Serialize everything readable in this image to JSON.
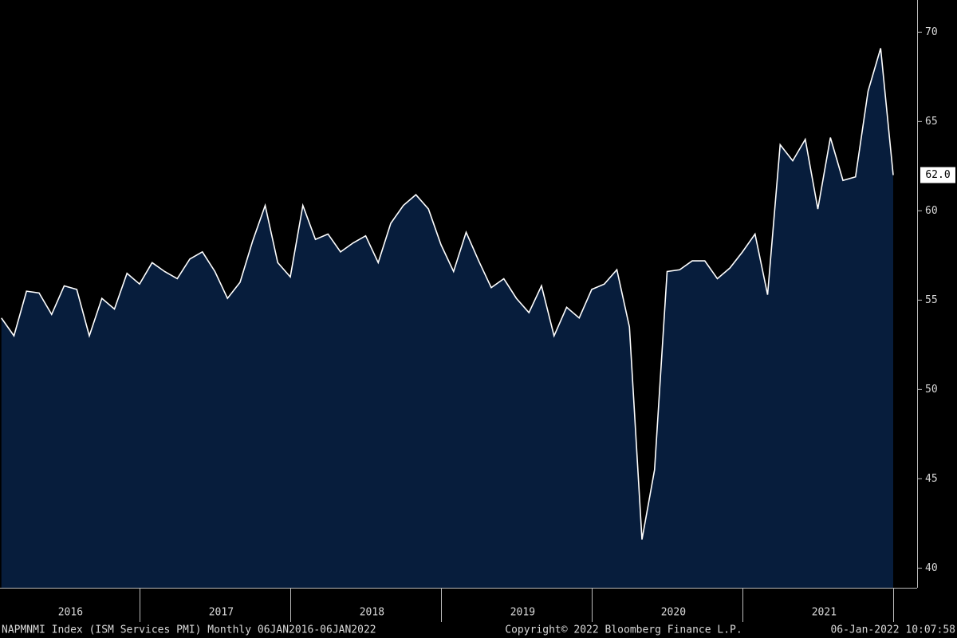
{
  "chart_data": {
    "type": "area",
    "categories": [
      null,
      null,
      null,
      null,
      null,
      "2016",
      null,
      null,
      null,
      null,
      null,
      null,
      null,
      null,
      null,
      null,
      null,
      "2017",
      null,
      null,
      null,
      null,
      null,
      null,
      null,
      null,
      null,
      null,
      null,
      "2018",
      null,
      null,
      null,
      null,
      null,
      null,
      null,
      null,
      null,
      null,
      null,
      "2019",
      null,
      null,
      null,
      null,
      null,
      null,
      null,
      null,
      null,
      null,
      null,
      "2020",
      null,
      null,
      null,
      null,
      null,
      null,
      null,
      null,
      null,
      null,
      null,
      "2021",
      null,
      null,
      null,
      null,
      null,
      null
    ],
    "series": [
      {
        "name": "NAPMNMI Index",
        "color": "#ffffff",
        "fill": "#071d3c",
        "values": [
          54.0,
          53.0,
          55.5,
          55.4,
          54.2,
          55.8,
          55.6,
          53.0,
          55.1,
          54.5,
          56.5,
          55.9,
          57.1,
          56.6,
          56.2,
          57.3,
          57.7,
          56.6,
          55.1,
          56.0,
          58.3,
          60.3,
          57.1,
          56.3,
          60.3,
          58.4,
          58.7,
          57.7,
          58.2,
          58.6,
          57.1,
          59.3,
          60.3,
          60.9,
          60.1,
          58.1,
          56.6,
          58.8,
          57.2,
          55.7,
          56.2,
          55.1,
          54.3,
          55.8,
          53.0,
          54.6,
          54.0,
          55.6,
          55.9,
          56.7,
          53.5,
          41.6,
          45.5,
          56.6,
          56.7,
          57.2,
          57.2,
          56.2,
          56.8,
          57.7,
          58.7,
          55.3,
          63.7,
          62.8,
          64.0,
          60.1,
          64.1,
          61.7,
          61.9,
          66.7,
          69.1,
          62.0
        ],
        "value_labels": [
          null,
          null,
          null,
          null,
          null,
          null,
          null,
          null,
          null,
          null,
          null,
          null,
          null,
          null,
          null,
          null,
          null,
          null,
          null,
          null,
          null,
          null,
          null,
          null,
          null,
          null,
          null,
          null,
          null,
          null,
          null,
          null,
          null,
          null,
          null,
          null,
          null,
          null,
          null,
          null,
          null,
          null,
          null,
          null,
          null,
          null,
          null,
          null,
          null,
          null,
          null,
          null,
          null,
          null,
          null,
          null,
          null,
          null,
          null,
          null,
          null,
          null,
          null,
          null,
          null,
          null,
          null,
          null,
          null,
          null,
          null,
          "62.0"
        ]
      }
    ],
    "ylim": [
      38.9,
      71.8
    ],
    "yticks": [
      40,
      45,
      50,
      55,
      60,
      65,
      70
    ],
    "footer": {
      "left": "NAPMNMI Index (ISM Services PMI)  Monthly 06JAN2016-06JAN2022",
      "center": "Copyright© 2022 Bloomberg Finance L.P.",
      "right": "06-Jan-2022 10:07:58"
    }
  }
}
